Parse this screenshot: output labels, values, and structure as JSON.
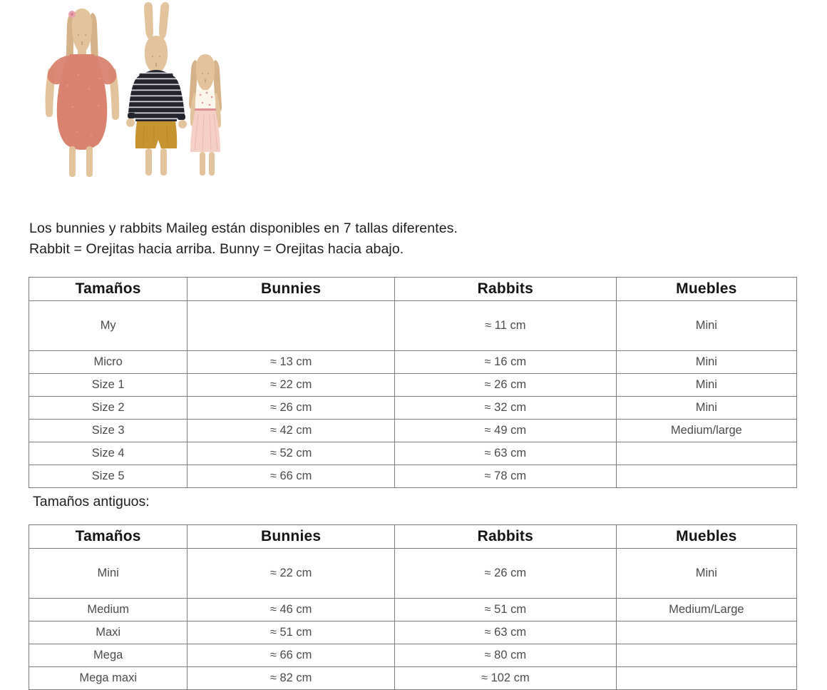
{
  "theme": {
    "text_primary": "#1e1e1e",
    "text_secondary": "#4b4b4b",
    "border": "#7c7c7c",
    "doll_skin": "#e2c39c",
    "doll_skin_shade": "#d6b289",
    "coral_dress": "#d98270",
    "navy_top": "#24242e",
    "mustard_shorts": "#c5932f",
    "pink_skirt": "#f4cfc6",
    "cream_bodice": "#fbf5ec",
    "flower_pink": "#e8a0ae"
  },
  "photo": {
    "description": "Three Maileg fabric dolls: large bunny in coral dress, medium rabbit in striped hoodie and mustard shorts, small bunny in pink dress"
  },
  "intro": {
    "line1": "Los bunnies y rabbits Maileg están disponibles en 7 tallas diferentes.",
    "line2": "Rabbit = Orejitas hacia arriba. Bunny = Orejitas hacia abajo."
  },
  "size_table": {
    "headers": [
      "Tamaños",
      "Bunnies",
      "Rabbits",
      "Muebles"
    ],
    "rows": [
      [
        "My",
        "",
        "≈ 11 cm",
        "Mini"
      ],
      [
        "Micro",
        "≈ 13 cm",
        "≈ 16 cm",
        "Mini"
      ],
      [
        "Size 1",
        "≈ 22 cm",
        "≈ 26 cm",
        "Mini"
      ],
      [
        "Size 2",
        "≈ 26 cm",
        "≈ 32 cm",
        "Mini"
      ],
      [
        "Size 3",
        "≈ 42 cm",
        "≈ 49 cm",
        "Medium/large"
      ],
      [
        "Size 4",
        "≈ 52 cm",
        "≈ 63 cm",
        ""
      ],
      [
        "Size 5",
        "≈ 66 cm",
        "≈ 78 cm",
        ""
      ]
    ]
  },
  "old_sizes_heading": "Tamaños antiguos:",
  "old_size_table": {
    "headers": [
      "Tamaños",
      "Bunnies",
      "Rabbits",
      "Muebles"
    ],
    "rows": [
      [
        "Mini",
        "≈ 22 cm",
        "≈ 26 cm",
        "Mini"
      ],
      [
        "Medium",
        "≈ 46 cm",
        "≈ 51 cm",
        "Medium/Large"
      ],
      [
        "Maxi",
        "≈ 51 cm",
        "≈ 63 cm",
        ""
      ],
      [
        "Mega",
        "≈ 66 cm",
        "≈ 80 cm",
        ""
      ],
      [
        "Mega maxi",
        "≈ 82 cm",
        "≈ 102 cm",
        ""
      ]
    ]
  }
}
